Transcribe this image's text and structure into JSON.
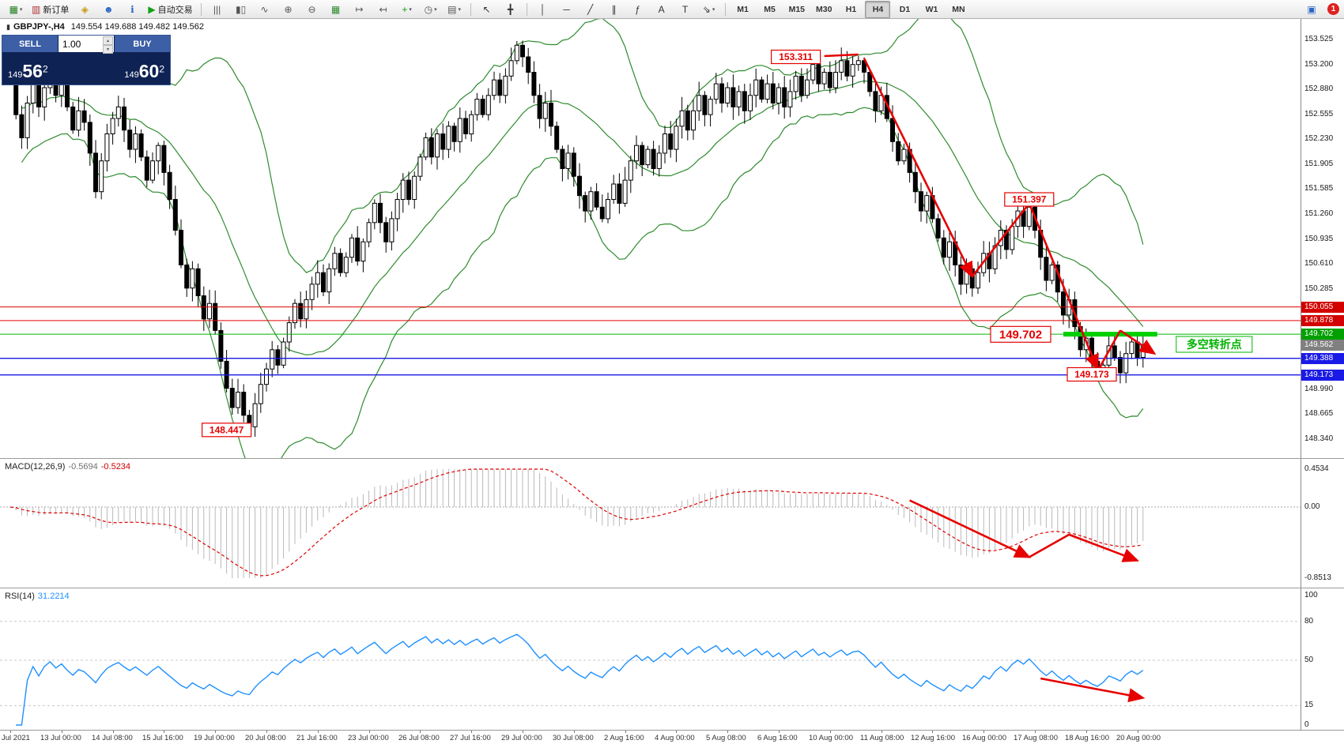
{
  "toolbar": {
    "items": [
      {
        "name": "new-chart-button",
        "glyph": "▦",
        "color": "#1b7e1b",
        "caret": true
      },
      {
        "name": "new-order-button",
        "glyph": "▥",
        "color": "#b03030",
        "label": "新订单"
      },
      {
        "name": "mql-compass-icon",
        "glyph": "◈",
        "color": "#c79810"
      },
      {
        "name": "profiles-button",
        "glyph": "☻",
        "color": "#2b66c4"
      },
      {
        "name": "info-button",
        "glyph": "ℹ",
        "color": "#2b66c4"
      },
      {
        "name": "autotrading-button",
        "glyph": "▶",
        "color": "#13a113",
        "label": "自动交易"
      },
      {
        "name": "sep-1",
        "type": "sep"
      },
      {
        "name": "bar-chart-button",
        "glyph": "|||",
        "color": "#555"
      },
      {
        "name": "candlestick-chart-button",
        "glyph": "▮▯",
        "color": "#555"
      },
      {
        "name": "line-chart-button",
        "glyph": "∿",
        "color": "#555"
      },
      {
        "name": "zoom-in-button",
        "glyph": "⊕",
        "color": "#555"
      },
      {
        "name": "zoom-out-button",
        "glyph": "⊖",
        "color": "#555"
      },
      {
        "name": "tile-windows-button",
        "glyph": "▦",
        "color": "#2b8a2b"
      },
      {
        "name": "auto-scroll-button",
        "glyph": "↦",
        "color": "#555"
      },
      {
        "name": "chart-shift-button",
        "glyph": "↤",
        "color": "#555"
      },
      {
        "name": "indicators-button",
        "glyph": "+",
        "color": "#13a113",
        "caret": true
      },
      {
        "name": "periods-button",
        "glyph": "◷",
        "color": "#555",
        "caret": true
      },
      {
        "name": "templates-button",
        "glyph": "▤",
        "color": "#555",
        "caret": true
      },
      {
        "name": "sep-2",
        "type": "sep"
      },
      {
        "name": "cursor-button",
        "glyph": "↖",
        "color": "#333"
      },
      {
        "name": "crosshair-button",
        "glyph": "╋",
        "color": "#333"
      },
      {
        "name": "sep-3",
        "type": "sep"
      },
      {
        "name": "vertical-line-button",
        "glyph": "│",
        "color": "#333"
      },
      {
        "name": "horizontal-line-button",
        "glyph": "─",
        "color": "#333"
      },
      {
        "name": "trendline-button",
        "glyph": "╱",
        "color": "#333"
      },
      {
        "name": "channel-button",
        "glyph": "∥",
        "color": "#333"
      },
      {
        "name": "fibonacci-button",
        "glyph": "ƒ",
        "color": "#333"
      },
      {
        "name": "text-button",
        "glyph": "A",
        "color": "#333"
      },
      {
        "name": "label-button",
        "glyph": "T",
        "color": "#333"
      },
      {
        "name": "arrows-button",
        "glyph": "⇘",
        "color": "#333",
        "caret": true
      },
      {
        "name": "sep-4",
        "type": "sep"
      }
    ],
    "timeframes": [
      "M1",
      "M5",
      "M15",
      "M30",
      "H1",
      "H4",
      "D1",
      "W1",
      "MN"
    ],
    "active_timeframe": "H4",
    "right_items": [
      {
        "name": "market-watch-icon",
        "glyph": "▣",
        "color": "#2b66c4"
      },
      {
        "name": "notifications-badge",
        "type": "badge",
        "label": "1",
        "color": "#e02020"
      }
    ]
  },
  "chart": {
    "icon_glyph": "▮",
    "symbol_period": "GBPJPY-,H4",
    "ohlc": "149.554 149.688 149.482 149.562"
  },
  "trade_panel": {
    "sell_label": "SELL",
    "buy_label": "BUY",
    "volume": "1.00",
    "spin_up": "▴",
    "spin_down": "▾",
    "sell_price": {
      "prefix": "149",
      "big": "56",
      "sup": "2"
    },
    "buy_price": {
      "prefix": "149",
      "big": "60",
      "sup": "2"
    }
  },
  "macd": {
    "label": "MACD(12,26,9)",
    "value_main": "-0.5694",
    "value_signal": "-0.5234",
    "ticks": [
      {
        "label": "0.4534",
        "value": 0.4534
      },
      {
        "label": "0.00",
        "value": 0
      },
      {
        "label": "-0.8513",
        "value": -0.8513
      }
    ]
  },
  "rsi": {
    "label": "RSI(14)",
    "value": "31.2214",
    "levels": [
      80,
      50,
      15
    ],
    "ticks": [
      {
        "label": "100",
        "value": 100
      },
      {
        "label": "80",
        "value": 80
      },
      {
        "label": "50",
        "value": 50
      },
      {
        "label": "15",
        "value": 15
      },
      {
        "label": "0",
        "value": 0
      }
    ]
  },
  "price_scale": {
    "ticks": [
      {
        "label": "153.525",
        "price": 153.525
      },
      {
        "label": "153.200",
        "price": 153.2
      },
      {
        "label": "152.880",
        "price": 152.88
      },
      {
        "label": "152.555",
        "price": 152.555
      },
      {
        "label": "152.230",
        "price": 152.23
      },
      {
        "label": "151.905",
        "price": 151.905
      },
      {
        "label": "151.585",
        "price": 151.585
      },
      {
        "label": "151.260",
        "price": 151.26
      },
      {
        "label": "150.935",
        "price": 150.935
      },
      {
        "label": "150.610",
        "price": 150.61
      },
      {
        "label": "150.285",
        "price": 150.285
      },
      {
        "label": "148.990",
        "price": 148.99
      },
      {
        "label": "148.665",
        "price": 148.665
      },
      {
        "label": "148.340",
        "price": 148.34
      }
    ],
    "tags": [
      {
        "label": "150.055",
        "price": 150.055,
        "bg": "#d40000"
      },
      {
        "label": "149.878",
        "price": 149.878,
        "bg": "#d40000"
      },
      {
        "label": "149.702",
        "price": 149.702,
        "bg": "#00a000"
      },
      {
        "label": "149.562",
        "price": 149.562,
        "bg": "#808080"
      },
      {
        "label": "149.388",
        "price": 149.388,
        "bg": "#1a1ae6"
      },
      {
        "label": "149.173",
        "price": 149.173,
        "bg": "#1a1ae6"
      }
    ]
  },
  "time_axis": {
    "labels": [
      "Jul 2021",
      "13 Jul 00:00",
      "14 Jul 08:00",
      "15 Jul 16:00",
      "19 Jul 00:00",
      "20 Jul 08:00",
      "21 Jul 16:00",
      "23 Jul 00:00",
      "26 Jul 08:00",
      "27 Jul 16:00",
      "29 Jul 00:00",
      "30 Jul 08:00",
      "2 Aug 16:00",
      "4 Aug 00:00",
      "5 Aug 08:00",
      "6 Aug 16:00",
      "10 Aug 00:00",
      "11 Aug 08:00",
      "12 Aug 16:00",
      "16 Aug 00:00",
      "17 Aug 08:00",
      "18 Aug 16:00",
      "20 Aug 00:00"
    ]
  },
  "chart_data": {
    "type": "candlestick",
    "symbol": "GBPJPY",
    "timeframe": "H4",
    "price_range": [
      148.34,
      153.525
    ],
    "indicators": [
      "Bollinger Bands",
      "MACD(12,26,9)",
      "RSI(14)"
    ],
    "candles": {
      "closes": [
        153.1,
        152.55,
        152.25,
        152.7,
        152.95,
        152.65,
        152.9,
        153.05,
        152.8,
        152.95,
        152.65,
        152.35,
        152.6,
        152.45,
        152.05,
        151.55,
        151.95,
        152.3,
        152.5,
        152.65,
        152.35,
        152.1,
        152.3,
        152.0,
        151.7,
        151.95,
        152.15,
        151.8,
        151.45,
        151.05,
        150.6,
        150.3,
        150.55,
        150.2,
        149.9,
        150.1,
        149.75,
        149.35,
        149.0,
        148.75,
        148.95,
        148.65,
        148.5,
        148.8,
        149.05,
        149.25,
        149.5,
        149.3,
        149.6,
        149.85,
        150.1,
        149.9,
        150.15,
        150.35,
        150.5,
        150.25,
        150.55,
        150.75,
        150.5,
        150.7,
        150.95,
        150.65,
        150.9,
        151.15,
        151.4,
        151.15,
        150.9,
        151.2,
        151.45,
        151.7,
        151.45,
        151.75,
        152.0,
        152.25,
        152.0,
        152.3,
        152.1,
        152.4,
        152.2,
        152.5,
        152.3,
        152.55,
        152.75,
        152.55,
        152.8,
        153.0,
        152.8,
        153.05,
        153.25,
        153.45,
        153.3,
        153.1,
        152.8,
        152.5,
        152.7,
        152.4,
        152.1,
        151.85,
        152.05,
        151.75,
        151.5,
        151.3,
        151.55,
        151.35,
        151.2,
        151.45,
        151.65,
        151.4,
        151.7,
        151.95,
        152.15,
        151.9,
        152.1,
        151.85,
        152.05,
        152.3,
        152.1,
        152.4,
        152.6,
        152.35,
        152.6,
        152.8,
        152.55,
        152.75,
        152.95,
        152.7,
        152.9,
        152.65,
        152.85,
        152.6,
        152.8,
        153.0,
        152.75,
        152.95,
        152.7,
        152.9,
        152.65,
        152.85,
        153.05,
        152.8,
        153.0,
        153.2,
        152.95,
        153.1,
        152.9,
        153.1,
        153.25,
        153.05,
        153.2,
        153.25,
        153.1,
        152.85,
        152.6,
        152.8,
        152.5,
        152.2,
        151.95,
        152.1,
        151.8,
        151.55,
        151.3,
        151.5,
        151.2,
        150.95,
        150.7,
        150.9,
        150.6,
        150.35,
        150.55,
        150.3,
        150.5,
        150.75,
        150.55,
        150.85,
        151.05,
        150.8,
        151.1,
        151.3,
        151.1,
        151.35,
        151.05,
        150.7,
        150.4,
        150.6,
        150.25,
        149.95,
        150.15,
        149.8,
        149.5,
        149.65,
        149.35,
        149.15,
        149.3,
        149.55,
        149.4,
        149.2,
        149.45,
        149.6,
        149.4,
        149.56
      ],
      "extremes": {
        "42": {
          "low": 148.447
        },
        "89": {
          "high": 153.505
        },
        "149": {
          "high": 153.311
        },
        "179": {
          "high": 151.397
        },
        "191": {
          "low": 149.1
        }
      }
    },
    "hlines": [
      {
        "price": 150.055,
        "color": "#e00000",
        "width": 1
      },
      {
        "price": 149.878,
        "color": "#e00000",
        "width": 1
      },
      {
        "price": 149.702,
        "color": "#00b300",
        "width": 1
      },
      {
        "price": 149.388,
        "color": "#1a1ae6",
        "width": 1.4
      },
      {
        "price": 149.173,
        "color": "#1a1ae6",
        "width": 1.4
      }
    ],
    "annotations": {
      "price_labels": [
        {
          "text": "153.311",
          "i": 138,
          "price": 153.3,
          "size": 12
        },
        {
          "text": "151.397",
          "i": 179,
          "price": 151.45,
          "size": 12
        },
        {
          "text": "149.702",
          "i": 177.5,
          "price": 149.7,
          "size": 15
        },
        {
          "text": "149.173",
          "i": 190,
          "price": 149.18,
          "size": 12
        },
        {
          "text": "148.447",
          "i": 38,
          "price": 148.46,
          "size": 12
        }
      ],
      "note": {
        "text": "多空转折点",
        "i": 211.5,
        "price": 149.57,
        "color": "#00b300"
      },
      "highlight_segment": {
        "from_i": 185,
        "to_i": 201.5,
        "price": 149.702,
        "color": "#00d000"
      },
      "arrows": {
        "main": [
          {
            "pts": [
              [
                143,
                153.31
              ],
              [
                149,
                153.33
              ]
            ],
            "head": false
          },
          {
            "pts": [
              [
                150,
                153.28
              ],
              [
                169,
                150.45
              ]
            ],
            "head": true
          },
          {
            "pts": [
              [
                169,
                150.45
              ],
              [
                179,
                151.4
              ]
            ],
            "head": false
          },
          {
            "pts": [
              [
                179,
                151.4
              ],
              [
                191,
                149.25
              ]
            ],
            "head": true
          },
          {
            "pts": [
              [
                191,
                149.22
              ],
              [
                195,
                149.75
              ]
            ],
            "head": false
          },
          {
            "pts": [
              [
                195,
                149.75
              ],
              [
                201,
                149.45
              ]
            ],
            "head": true
          }
        ],
        "macd": [
          {
            "pts": [
              [
                158,
                0.08
              ],
              [
                179,
                -0.6
              ]
            ],
            "head": true
          },
          {
            "pts": [
              [
                179,
                -0.6
              ],
              [
                186,
                -0.33
              ]
            ],
            "head": false
          },
          {
            "pts": [
              [
                186,
                -0.33
              ],
              [
                198,
                -0.64
              ]
            ],
            "head": true
          }
        ],
        "rsi": [
          {
            "pts": [
              [
                181,
                36
              ],
              [
                199,
                21
              ]
            ],
            "head": true
          }
        ]
      }
    }
  }
}
